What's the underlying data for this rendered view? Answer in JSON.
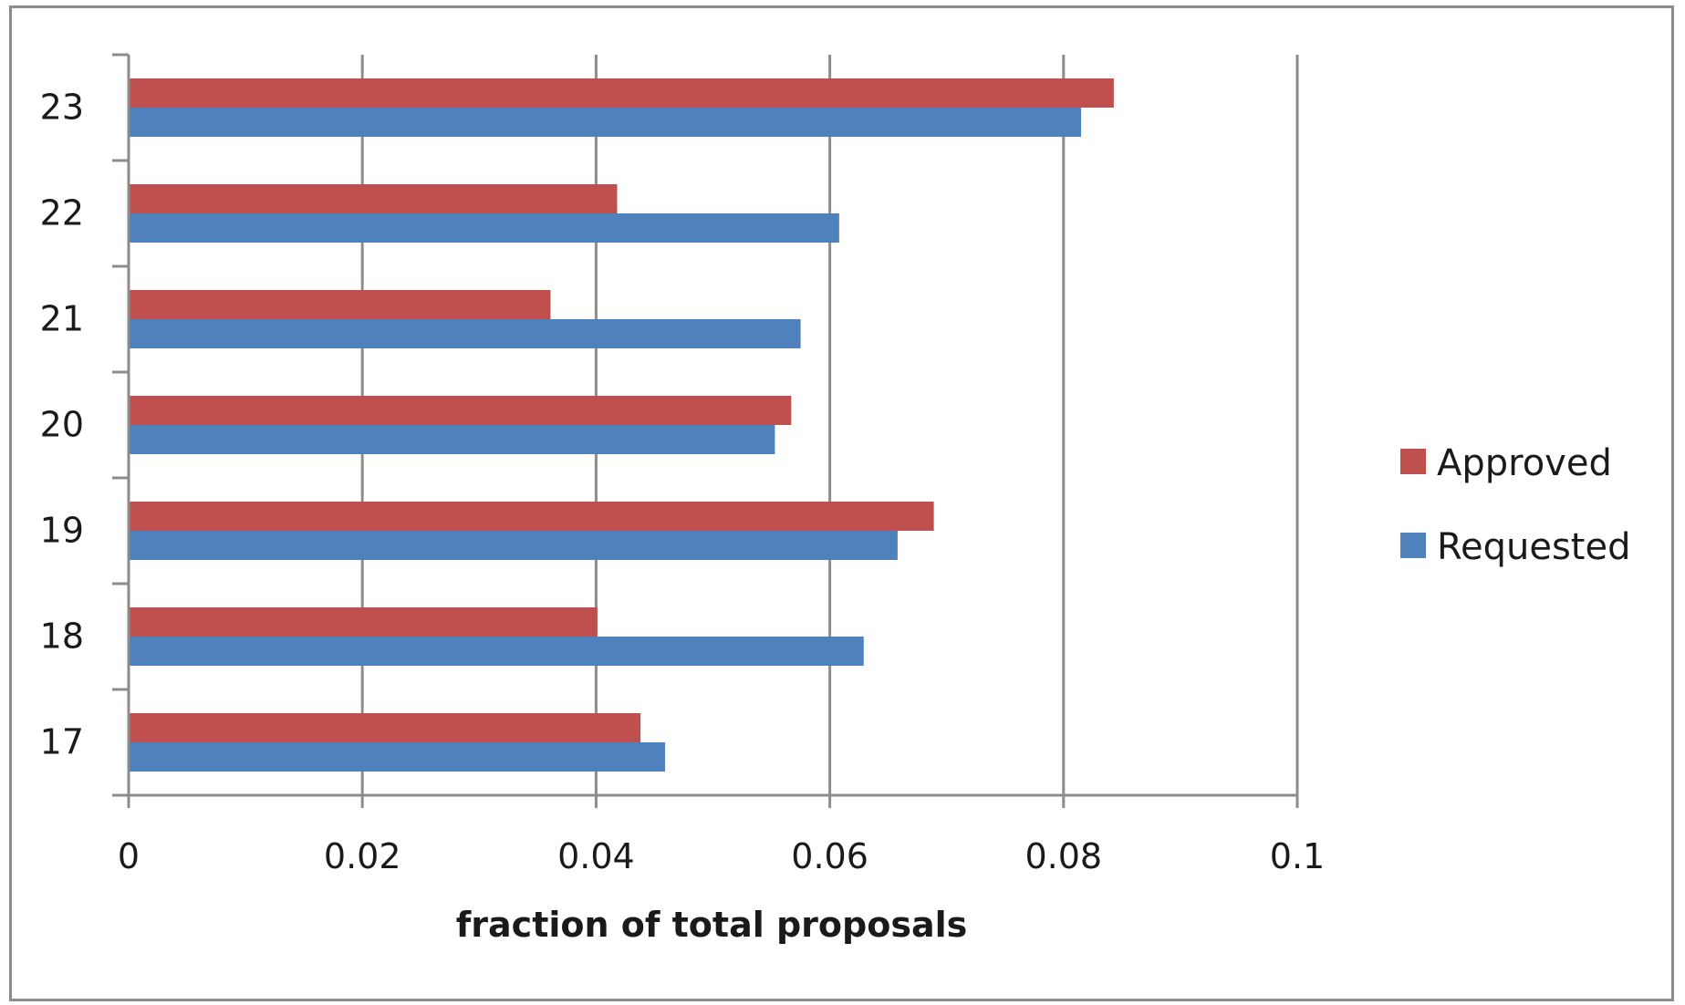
{
  "chart_data": {
    "type": "bar",
    "orientation": "horizontal",
    "categories": [
      "17",
      "18",
      "19",
      "20",
      "21",
      "22",
      "23"
    ],
    "series": [
      {
        "name": "Approved",
        "color": "#c0504d",
        "values": [
          0.0438,
          0.0401,
          0.0689,
          0.0567,
          0.0361,
          0.0418,
          0.0843
        ]
      },
      {
        "name": "Requested",
        "color": "#4f81bd",
        "values": [
          0.0459,
          0.0629,
          0.0658,
          0.0553,
          0.0575,
          0.0608,
          0.0815
        ]
      }
    ],
    "title": "",
    "xlabel": "fraction of total proposals",
    "ylabel": "",
    "xlim": [
      0,
      0.1
    ],
    "xticks": [
      "0",
      "0.02",
      "0.04",
      "0.06",
      "0.08",
      "0.1"
    ],
    "grid": "vertical",
    "legend_position": "right"
  }
}
